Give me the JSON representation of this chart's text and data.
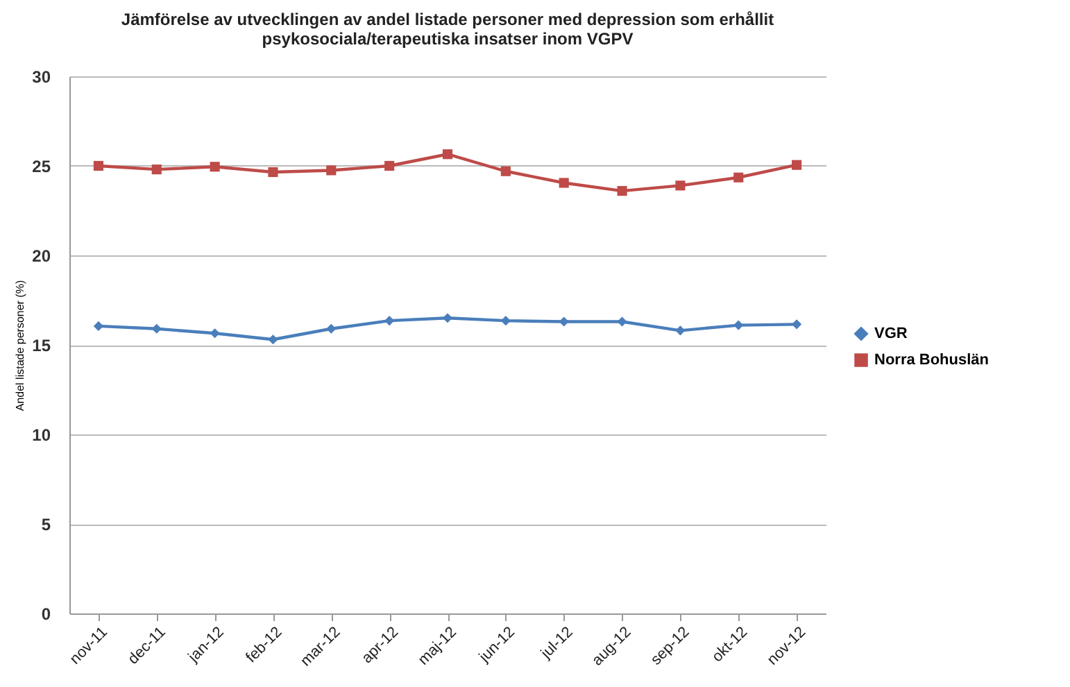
{
  "chart_data": {
    "type": "line",
    "title": "Jämförelse av utvecklingen av andel listade personer med depression som erhållit psykosociala/terapeutiska insatser inom VGPV",
    "ylabel": "Andel listade personer (%)",
    "categories": [
      "nov-11",
      "dec-11",
      "jan-12",
      "feb-12",
      "mar-12",
      "apr-12",
      "maj-12",
      "jun-12",
      "jul-12",
      "aug-12",
      "sep-12",
      "okt-12",
      "nov-12"
    ],
    "series": [
      {
        "name": "VGR",
        "color": "#4a7ebb",
        "marker": "diamond",
        "values": [
          16.05,
          15.9,
          15.65,
          15.3,
          15.9,
          16.35,
          16.5,
          16.35,
          16.3,
          16.3,
          15.8,
          16.1,
          16.15
        ]
      },
      {
        "name": "Norra Bohuslän",
        "color": "#be4b48",
        "marker": "square",
        "values": [
          25.0,
          24.8,
          24.95,
          24.65,
          24.75,
          25.0,
          25.65,
          24.7,
          24.05,
          23.6,
          23.9,
          24.35,
          25.05
        ]
      }
    ],
    "ylim": [
      0,
      30
    ],
    "yticks": [
      0,
      5,
      10,
      15,
      20,
      25,
      30
    ],
    "grid": "y",
    "legend": "right"
  }
}
